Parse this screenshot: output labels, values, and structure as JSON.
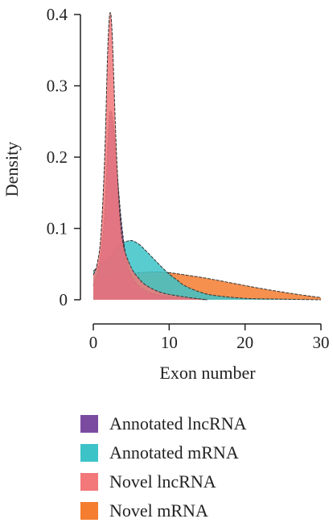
{
  "chart_data": {
    "type": "area",
    "xlabel": "Exon number",
    "ylabel": "Density",
    "xlim": [
      0,
      30
    ],
    "ylim": [
      0,
      0.4
    ],
    "x_ticks": [
      0,
      10,
      20,
      30
    ],
    "y_ticks": [
      0,
      0.1,
      0.2,
      0.3,
      0.4
    ],
    "y_tick_labels": [
      "0",
      "0.1",
      "0.2",
      "0.3",
      "0.4"
    ],
    "grid": false,
    "legend_position": "bottom",
    "series": [
      {
        "name": "Novel mRNA",
        "color": "#F47D30",
        "points": [
          [
            0,
            0.03
          ],
          [
            2,
            0.033
          ],
          [
            4,
            0.036
          ],
          [
            6,
            0.038
          ],
          [
            8,
            0.039
          ],
          [
            10,
            0.038
          ],
          [
            12,
            0.035
          ],
          [
            15,
            0.03
          ],
          [
            18,
            0.024
          ],
          [
            22,
            0.016
          ],
          [
            26,
            0.009
          ],
          [
            30,
            0.003
          ]
        ]
      },
      {
        "name": "Annotated mRNA",
        "color": "#3CC3C8",
        "points": [
          [
            0,
            0.04
          ],
          [
            1,
            0.05
          ],
          [
            2,
            0.06
          ],
          [
            3,
            0.072
          ],
          [
            4,
            0.08
          ],
          [
            5,
            0.083
          ],
          [
            6,
            0.078
          ],
          [
            7,
            0.068
          ],
          [
            8,
            0.057
          ],
          [
            9,
            0.046
          ],
          [
            10,
            0.036
          ],
          [
            11,
            0.028
          ],
          [
            12,
            0.02
          ],
          [
            14,
            0.011
          ],
          [
            16,
            0.006
          ],
          [
            20,
            0.002
          ],
          [
            24,
            0.001
          ],
          [
            30,
            0.0
          ]
        ]
      },
      {
        "name": "Annotated lncRNA",
        "color": "#7B4BA0",
        "points": [
          [
            0,
            0.02
          ],
          [
            0.8,
            0.05
          ],
          [
            1.5,
            0.12
          ],
          [
            2,
            0.24
          ],
          [
            2.3,
            0.265
          ],
          [
            2.7,
            0.24
          ],
          [
            3.2,
            0.17
          ],
          [
            3.8,
            0.1
          ],
          [
            4.5,
            0.05
          ],
          [
            5.5,
            0.025
          ],
          [
            7,
            0.012
          ],
          [
            9,
            0.006
          ],
          [
            12,
            0.002
          ],
          [
            15,
            0.0
          ]
        ]
      },
      {
        "name": "Novel lncRNA",
        "color": "#F2787A",
        "points": [
          [
            0,
            0.035
          ],
          [
            0.5,
            0.05
          ],
          [
            1,
            0.09
          ],
          [
            1.5,
            0.2
          ],
          [
            1.9,
            0.35
          ],
          [
            2.2,
            0.402
          ],
          [
            2.5,
            0.37
          ],
          [
            3,
            0.22
          ],
          [
            3.5,
            0.12
          ],
          [
            4,
            0.075
          ],
          [
            5,
            0.045
          ],
          [
            6,
            0.03
          ],
          [
            7,
            0.02
          ],
          [
            9,
            0.01
          ],
          [
            12,
            0.004
          ],
          [
            15,
            0.0
          ]
        ]
      }
    ]
  },
  "legend": {
    "items": [
      {
        "label": "Annotated lncRNA",
        "color": "#7B4BA0"
      },
      {
        "label": "Annotated mRNA",
        "color": "#3CC3C8"
      },
      {
        "label": "Novel lncRNA",
        "color": "#F2787A"
      },
      {
        "label": "Novel mRNA",
        "color": "#F47D30"
      }
    ]
  }
}
